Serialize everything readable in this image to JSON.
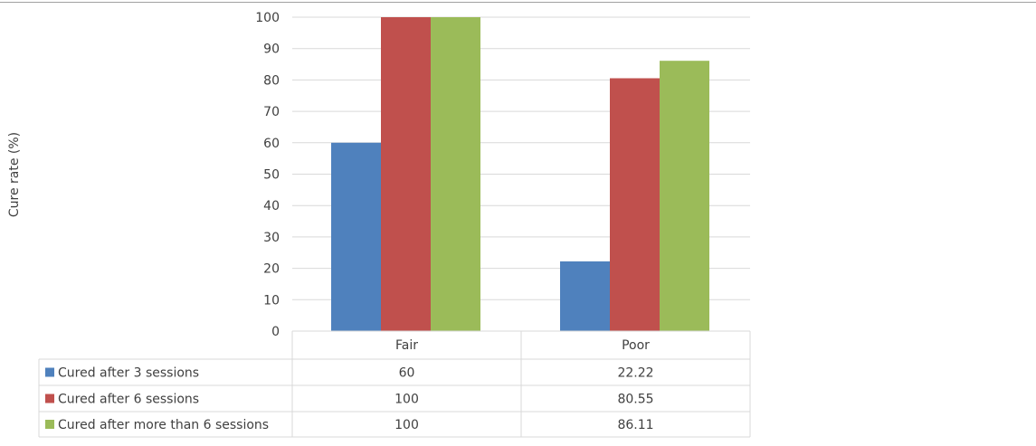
{
  "chart_data": {
    "type": "bar",
    "title": "",
    "xlabel": "",
    "ylabel": "Cure rate (%)",
    "categories": [
      "Fair",
      "Poor"
    ],
    "series": [
      {
        "name": "Cured after 3 sessions",
        "values": [
          60,
          22.22
        ],
        "color": "#4f81bd"
      },
      {
        "name": "Cured after 6 sessions",
        "values": [
          100,
          80.55
        ],
        "color": "#c0504d"
      },
      {
        "name": "Cured after more than 6 sessions",
        "values": [
          100,
          86.11
        ],
        "color": "#9bbb59"
      }
    ],
    "ylim": [
      0,
      100
    ],
    "yticks": [
      0,
      10,
      20,
      30,
      40,
      50,
      60,
      70,
      80,
      90,
      100
    ],
    "grid": true,
    "legend": "data-table",
    "data_table": {
      "rows": [
        {
          "label": "Cured after 3 sessions",
          "cells": [
            "60",
            "22.22"
          ]
        },
        {
          "label": "Cured after 6 sessions",
          "cells": [
            "100",
            "80.55"
          ]
        },
        {
          "label": "Cured after more than 6 sessions",
          "cells": [
            "100",
            "86.11"
          ]
        }
      ]
    }
  },
  "colors": {
    "gridline": "#d9d9d9",
    "axis_text": "#404040",
    "table_border": "#d9d9d9",
    "top_rule": "#a0a0a0"
  }
}
